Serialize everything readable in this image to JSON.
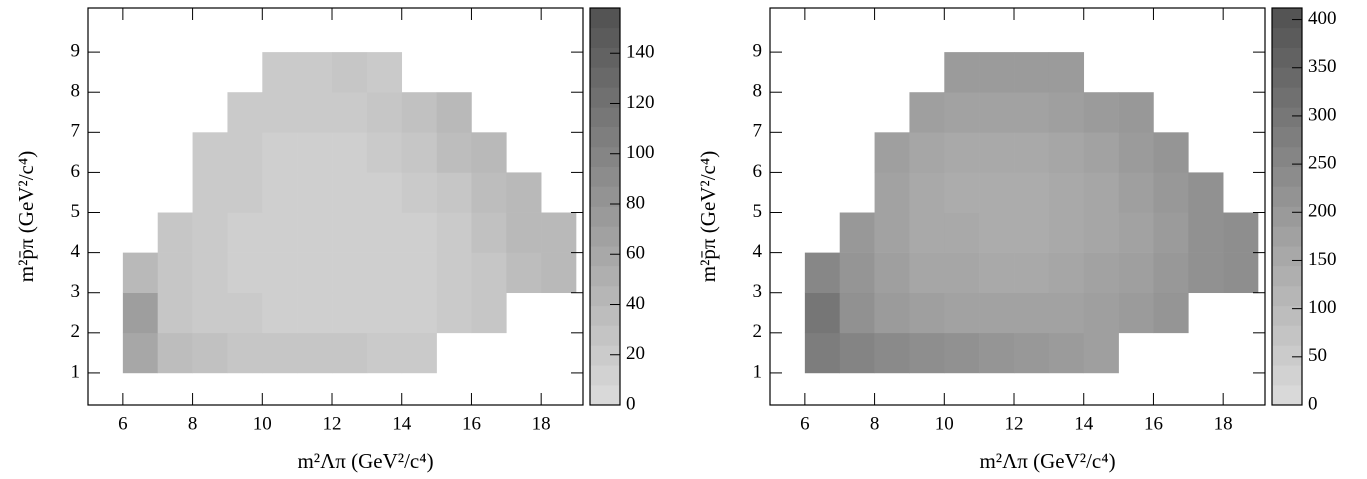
{
  "chart_data": [
    {
      "type": "heatmap",
      "xlabel": "m²Λπ (GeV²/c⁴)",
      "ylabel": "m²p̄π (GeV²/c⁴)",
      "xlim": [
        5,
        19.2
      ],
      "ylim": [
        0.2,
        10.1
      ],
      "zlim": [
        0,
        158
      ],
      "xticks": [
        6,
        8,
        10,
        12,
        14,
        16,
        18
      ],
      "yticks": [
        1,
        2,
        3,
        4,
        5,
        6,
        7,
        8,
        9
      ],
      "zticks": [
        0,
        20,
        40,
        60,
        80,
        100,
        120,
        140
      ],
      "colormap": [
        "#dcdcdc",
        "#505050"
      ],
      "xbins": [
        6,
        7,
        8,
        9,
        10,
        11,
        12,
        13,
        14,
        15,
        16,
        17,
        18,
        19
      ],
      "ybins": [
        1,
        2,
        3,
        4,
        5,
        6,
        7,
        8,
        9
      ],
      "z": [
        [
          60,
          35,
          30,
          25,
          25,
          25,
          25,
          20,
          20,
          null,
          null,
          null,
          null
        ],
        [
          70,
          25,
          20,
          20,
          15,
          15,
          15,
          15,
          15,
          20,
          25,
          null,
          null
        ],
        [
          40,
          25,
          20,
          15,
          15,
          15,
          15,
          15,
          15,
          20,
          25,
          35,
          40
        ],
        [
          null,
          25,
          20,
          15,
          15,
          15,
          15,
          15,
          15,
          20,
          30,
          40,
          40
        ],
        [
          null,
          null,
          20,
          20,
          15,
          15,
          15,
          15,
          20,
          25,
          35,
          40,
          null
        ],
        [
          null,
          null,
          20,
          20,
          15,
          15,
          15,
          20,
          25,
          35,
          40,
          null,
          null
        ],
        [
          null,
          null,
          null,
          20,
          20,
          20,
          20,
          25,
          30,
          40,
          null,
          null,
          null
        ],
        [
          null,
          null,
          null,
          null,
          20,
          20,
          25,
          20,
          null,
          null,
          null,
          null,
          null
        ]
      ]
    },
    {
      "type": "heatmap",
      "xlabel": "m²Λπ (GeV²/c⁴)",
      "ylabel": "m²p̄π (GeV²/c⁴)",
      "xlim": [
        5,
        19.2
      ],
      "ylim": [
        0.2,
        10.1
      ],
      "zlim": [
        0,
        412
      ],
      "xticks": [
        6,
        8,
        10,
        12,
        14,
        16,
        18
      ],
      "yticks": [
        1,
        2,
        3,
        4,
        5,
        6,
        7,
        8,
        9
      ],
      "zticks": [
        0,
        50,
        100,
        150,
        200,
        250,
        300,
        350,
        400
      ],
      "colormap": [
        "#dcdcdc",
        "#505050"
      ],
      "xbins": [
        6,
        7,
        8,
        9,
        10,
        11,
        12,
        13,
        14,
        15,
        16,
        17,
        18,
        19
      ],
      "ybins": [
        1,
        2,
        3,
        4,
        5,
        6,
        7,
        8,
        9
      ],
      "z": [
        [
          280,
          260,
          240,
          230,
          220,
          210,
          200,
          190,
          180,
          null,
          null,
          null,
          null
        ],
        [
          300,
          220,
          190,
          180,
          170,
          170,
          170,
          170,
          180,
          190,
          210,
          null,
          null
        ],
        [
          250,
          210,
          180,
          160,
          160,
          150,
          150,
          160,
          170,
          180,
          200,
          220,
          230
        ],
        [
          null,
          200,
          170,
          150,
          150,
          140,
          140,
          150,
          160,
          170,
          190,
          220,
          230
        ],
        [
          null,
          null,
          170,
          150,
          140,
          140,
          140,
          150,
          160,
          180,
          200,
          220,
          null
        ],
        [
          null,
          null,
          180,
          160,
          150,
          150,
          150,
          160,
          170,
          190,
          210,
          null,
          null
        ],
        [
          null,
          null,
          null,
          180,
          170,
          170,
          170,
          180,
          190,
          200,
          null,
          null,
          null
        ],
        [
          null,
          null,
          null,
          null,
          190,
          190,
          190,
          190,
          null,
          null,
          null,
          null,
          null
        ]
      ]
    }
  ]
}
